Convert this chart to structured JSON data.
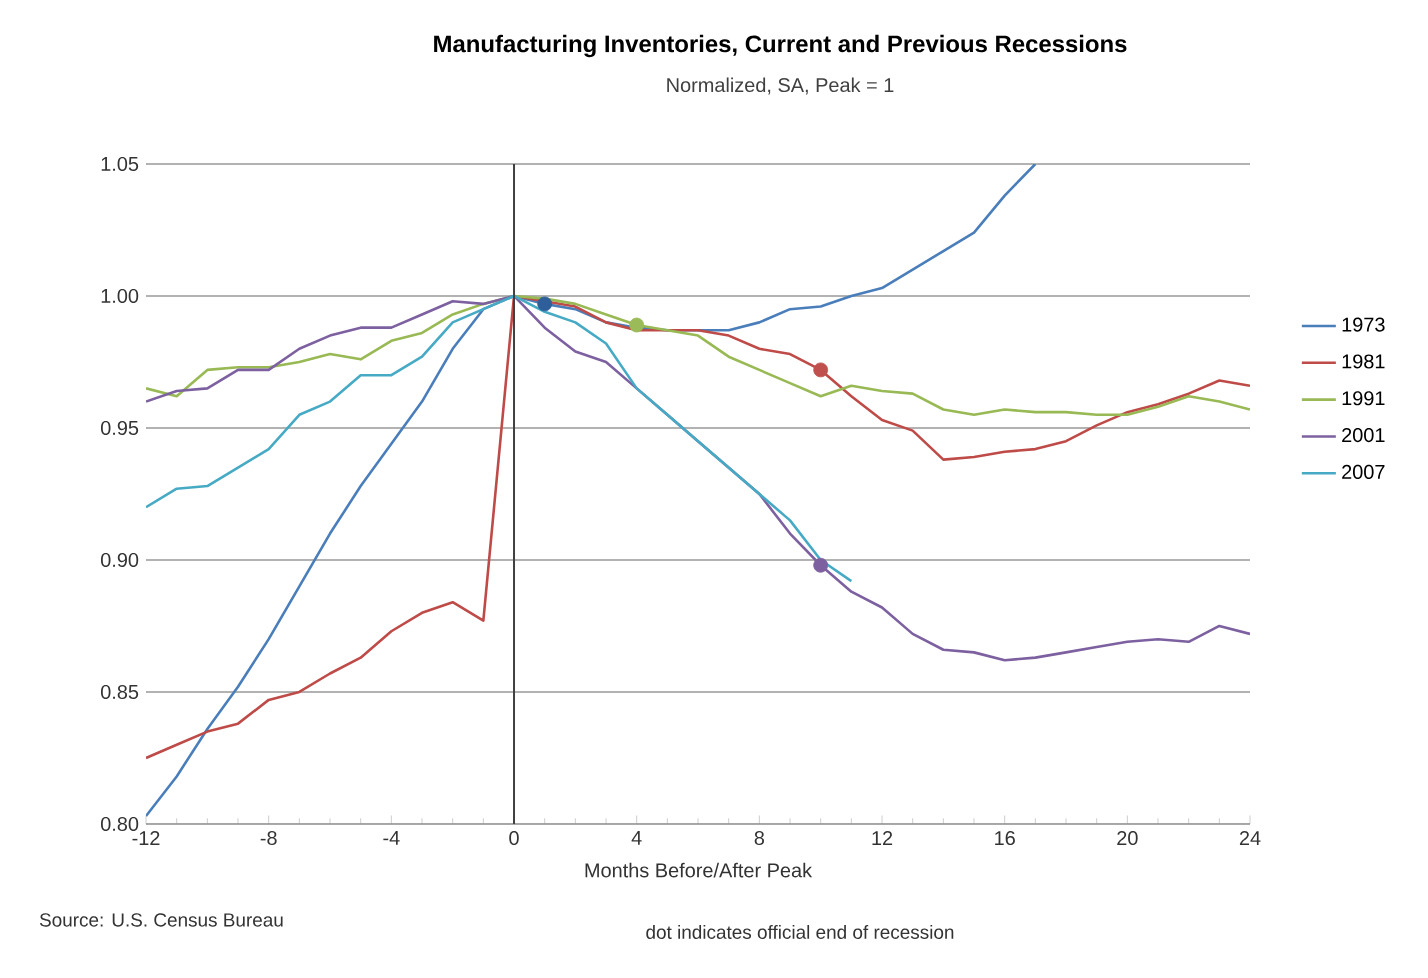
{
  "chart_data": {
    "type": "line",
    "title": "Manufacturing Inventories, Current and Previous Recessions",
    "subtitle": "Normalized, SA, Peak = 1",
    "xlabel": "Months Before/After Peak",
    "annotations": [
      "Source: U.S. Census Bureau",
      "dot indicates official  end of recession"
    ],
    "x": [
      -12,
      -11,
      -10,
      -9,
      -8,
      -7,
      -6,
      -5,
      -4,
      -3,
      -2,
      -1,
      0,
      1,
      2,
      3,
      4,
      5,
      6,
      7,
      8,
      9,
      10,
      11,
      12,
      13,
      14,
      15,
      16,
      17,
      18,
      19,
      20,
      21,
      22,
      23,
      24
    ],
    "series": [
      {
        "name": "1973",
        "color": "#4a7ebb",
        "values": [
          0.803,
          0.818,
          0.836,
          0.852,
          0.87,
          0.89,
          0.91,
          0.928,
          0.944,
          0.96,
          0.98,
          0.995,
          1.0,
          0.997,
          0.995,
          0.99,
          0.988,
          0.987,
          0.987,
          0.987,
          0.99,
          0.995,
          0.996,
          1.0,
          1.003,
          1.01,
          1.017,
          1.024,
          1.038,
          1.05,
          null,
          null,
          null,
          null,
          null,
          null,
          null
        ]
      },
      {
        "name": "1981",
        "color": "#be4b48",
        "values": [
          0.825,
          0.83,
          0.835,
          0.838,
          0.847,
          0.85,
          0.857,
          0.863,
          0.873,
          0.88,
          0.884,
          0.877,
          1.0,
          0.998,
          0.996,
          0.99,
          0.987,
          0.987,
          0.987,
          0.985,
          0.98,
          0.978,
          0.972,
          0.962,
          0.953,
          0.949,
          0.938,
          0.939,
          0.941,
          0.942,
          0.945,
          0.951,
          0.956,
          0.959,
          0.963,
          0.968,
          0.966
        ]
      },
      {
        "name": "1991",
        "color": "#98b954",
        "values": [
          0.965,
          0.962,
          0.972,
          0.973,
          0.973,
          0.975,
          0.978,
          0.976,
          0.983,
          0.986,
          0.993,
          0.997,
          1.0,
          0.999,
          0.997,
          0.993,
          0.989,
          0.987,
          0.985,
          0.977,
          0.972,
          0.967,
          0.962,
          0.966,
          0.964,
          0.963,
          0.957,
          0.955,
          0.957,
          0.956,
          0.956,
          0.955,
          0.955,
          0.958,
          0.962,
          0.96,
          0.957
        ]
      },
      {
        "name": "2001",
        "color": "#7d60a0",
        "values": [
          0.96,
          0.964,
          0.965,
          0.972,
          0.972,
          0.98,
          0.985,
          0.988,
          0.988,
          0.993,
          0.998,
          0.997,
          1.0,
          0.988,
          0.979,
          0.975,
          0.965,
          0.955,
          0.945,
          0.935,
          0.925,
          0.91,
          0.898,
          0.888,
          0.882,
          0.872,
          0.866,
          0.865,
          0.862,
          0.863,
          0.865,
          0.867,
          0.869,
          0.87,
          0.869,
          0.875,
          0.872
        ]
      },
      {
        "name": "2007",
        "color": "#46aac5",
        "values": [
          0.92,
          0.927,
          0.928,
          0.935,
          0.942,
          0.955,
          0.96,
          0.97,
          0.97,
          0.977,
          0.99,
          0.995,
          1.0,
          0.994,
          0.99,
          0.982,
          0.965,
          0.955,
          0.945,
          0.935,
          0.925,
          0.915,
          0.9,
          0.892,
          null,
          null,
          null,
          null,
          null,
          null,
          null,
          null,
          null,
          null,
          null,
          null,
          null
        ]
      },
      {
        "type": "scatter",
        "marker": "circle",
        "x": [
          1,
          4,
          10,
          10
        ],
        "values": [
          0.997,
          0.989,
          0.972,
          0.898
        ],
        "colors": [
          "#2e5f9a",
          "#9bbb59",
          "#c0504d",
          "#7d60a0"
        ]
      }
    ],
    "xlim": [
      -12,
      24
    ],
    "ylim": [
      0.8,
      1.05
    ],
    "xticks": [
      -12,
      -8,
      -4,
      0,
      4,
      8,
      12,
      16,
      20,
      24
    ],
    "yticks": [
      {
        "value": 0.8,
        "label": "0.80"
      },
      {
        "value": 0.85,
        "label": "0.85"
      },
      {
        "value": 0.9,
        "label": "0.90"
      },
      {
        "value": 0.95,
        "label": "0.95"
      },
      {
        "value": 1.0,
        "label": "1.00"
      },
      {
        "value": 1.05,
        "label": "1.05"
      }
    ],
    "ref_lines": [
      {
        "axis": "x",
        "value": 0,
        "color": "#404040"
      }
    ],
    "grid": "y",
    "legend": "right",
    "marker": "none",
    "line_style": "solid"
  }
}
